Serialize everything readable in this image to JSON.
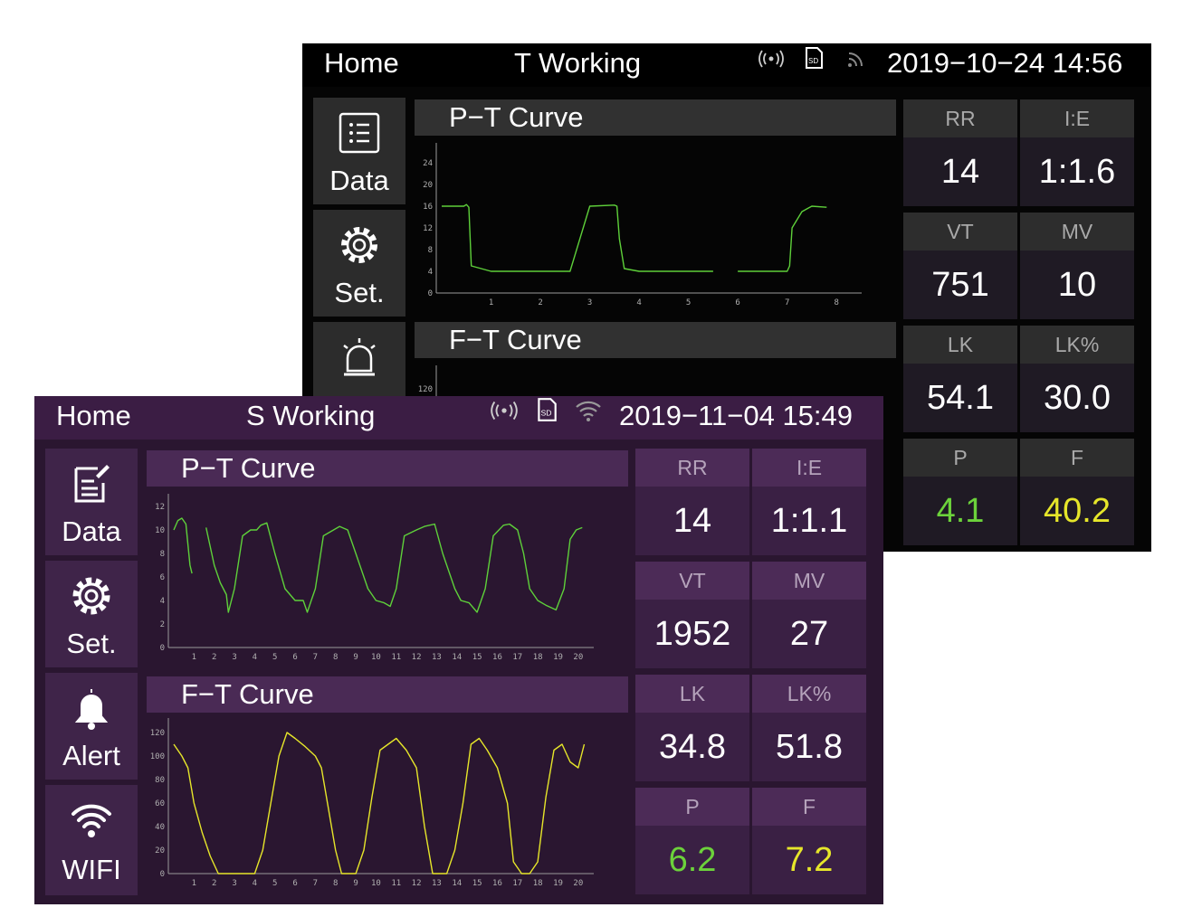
{
  "back_screen": {
    "header": {
      "home": "Home",
      "mode": "T Working",
      "sd_label": "SD",
      "datetime": "2019−10−24  14:56"
    },
    "nav": [
      {
        "label": "Data"
      },
      {
        "label": "Set."
      }
    ],
    "pt_curve": {
      "title": "P−T Curve",
      "y_ticks": [
        "24",
        "20",
        "16",
        "12",
        "8",
        "4",
        "0"
      ],
      "x_ticks": [
        "1",
        "2",
        "3",
        "4",
        "5",
        "6",
        "7",
        "8"
      ],
      "color": "#5ed03a"
    },
    "ft_curve": {
      "title": "F−T Curve",
      "y_ticks": [
        "120"
      ]
    },
    "params": [
      {
        "label": "RR",
        "value": "14"
      },
      {
        "label": "I:E",
        "value": "1:1.6"
      },
      {
        "label": "VT",
        "value": "751"
      },
      {
        "label": "MV",
        "value": "10"
      },
      {
        "label": "LK",
        "value": "54.1"
      },
      {
        "label": "LK%",
        "value": "30.0"
      },
      {
        "label": "P",
        "value": "4.1"
      },
      {
        "label": "F",
        "value": "40.2"
      }
    ],
    "p_color": "#6cd23b",
    "f_color": "#e6e62a"
  },
  "front_screen": {
    "header": {
      "home": "Home",
      "mode": "S Working",
      "sd_label": "SD",
      "datetime": "2019−11−04  15:49"
    },
    "nav": [
      {
        "label": "Data"
      },
      {
        "label": "Set."
      },
      {
        "label": "Alert"
      },
      {
        "label": "WIFI"
      }
    ],
    "pt_curve": {
      "title": "P−T Curve",
      "y_ticks": [
        "12",
        "10",
        "8",
        "6",
        "4",
        "2",
        "0"
      ],
      "x_ticks": [
        "1",
        "2",
        "3",
        "4",
        "5",
        "6",
        "7",
        "8",
        "9",
        "10",
        "11",
        "12",
        "13",
        "14",
        "15",
        "16",
        "17",
        "18",
        "19",
        "20"
      ],
      "color": "#5ed03a"
    },
    "ft_curve": {
      "title": "F−T Curve",
      "y_ticks": [
        "120",
        "100",
        "80",
        "60",
        "40",
        "20",
        "0"
      ],
      "x_ticks": [
        "1",
        "2",
        "3",
        "4",
        "5",
        "6",
        "7",
        "8",
        "9",
        "10",
        "11",
        "12",
        "13",
        "14",
        "15",
        "16",
        "17",
        "18",
        "19",
        "20"
      ],
      "color": "#e6e62a"
    },
    "params": [
      {
        "label": "RR",
        "value": "14"
      },
      {
        "label": "I:E",
        "value": "1:1.1"
      },
      {
        "label": "VT",
        "value": "1952"
      },
      {
        "label": "MV",
        "value": "27"
      },
      {
        "label": "LK",
        "value": "34.8"
      },
      {
        "label": "LK%",
        "value": "51.8"
      },
      {
        "label": "P",
        "value": "6.2"
      },
      {
        "label": "F",
        "value": "7.2"
      }
    ],
    "p_color": "#6cd23b",
    "f_color": "#e6e62a"
  },
  "chart_data": [
    {
      "type": "line",
      "title": "P−T Curve",
      "ylim": [
        0,
        24
      ],
      "x": [
        0.0,
        0.45,
        0.5,
        0.55,
        0.6,
        1.0,
        2.0,
        2.3,
        2.5,
        2.6,
        3.0,
        3.5,
        3.55,
        3.6,
        3.7,
        4.0,
        5.0,
        5.5,
        5.6,
        6.0,
        7.0,
        7.05,
        7.1,
        7.3,
        7.5,
        7.8
      ],
      "series": [
        {
          "values": [
            16,
            16,
            16.3,
            15.8,
            5,
            4,
            4,
            4,
            4,
            4,
            16,
            16.2,
            16,
            10,
            4.5,
            4,
            4,
            4,
            null,
            4,
            4,
            5,
            12,
            15,
            16,
            15.8
          ]
        }
      ]
    },
    {
      "type": "line",
      "title": "P−T Curve",
      "ylim": [
        0,
        12
      ],
      "x": [
        0.0,
        0.2,
        0.4,
        0.6,
        0.8,
        0.9,
        1.2,
        1.6,
        2.0,
        2.3,
        2.6,
        2.7,
        3.0,
        3.4,
        3.8,
        4.1,
        4.3,
        4.6,
        5.0,
        5.5,
        6.0,
        6.4,
        6.6,
        6.8,
        7.0,
        7.4,
        7.9,
        8.2,
        8.6,
        9.0,
        9.6,
        10.0,
        10.4,
        10.7,
        11.0,
        11.4,
        12.0,
        12.4,
        12.9,
        13.3,
        13.9,
        14.2,
        14.6,
        15.0,
        15.4,
        15.8,
        16.3,
        16.6,
        17.0,
        17.3,
        17.6,
        18.0,
        18.4,
        18.9,
        19.3,
        19.6,
        19.9,
        20.2
      ],
      "series": [
        {
          "values": [
            10,
            10.8,
            11,
            10.5,
            7,
            6.3,
            null,
            10.2,
            7,
            5.5,
            4.5,
            3,
            5,
            9.5,
            10,
            10,
            10.4,
            10.6,
            8,
            5,
            4,
            4,
            3,
            4,
            5,
            9.5,
            10,
            10.3,
            10,
            8,
            5,
            4,
            3.8,
            3.5,
            5,
            9.5,
            10,
            10.3,
            10.5,
            8,
            5,
            4,
            3.8,
            3,
            5,
            9.5,
            10.4,
            10.5,
            10,
            8,
            5,
            4,
            3.6,
            3.2,
            5,
            9.2,
            10,
            10.2
          ]
        }
      ]
    },
    {
      "type": "line",
      "title": "F−T Curve",
      "ylim": [
        0,
        120
      ],
      "x": [
        0.0,
        0.4,
        0.7,
        1.0,
        1.4,
        1.8,
        2.2,
        2.6,
        3.0,
        3.3,
        3.6,
        4.0,
        4.4,
        4.8,
        5.2,
        5.6,
        6.0,
        6.5,
        7.0,
        7.3,
        7.6,
        8.0,
        8.3,
        8.6,
        9.0,
        9.4,
        9.8,
        10.2,
        10.6,
        11.0,
        11.5,
        12.0,
        12.4,
        12.8,
        13.1,
        13.5,
        13.9,
        14.3,
        14.7,
        15.1,
        15.5,
        16.0,
        16.5,
        16.8,
        17.2,
        17.6,
        18.0,
        18.4,
        18.8,
        19.2,
        19.6,
        20.0,
        20.3
      ],
      "series": [
        {
          "values": [
            110,
            100,
            90,
            60,
            35,
            15,
            0,
            0,
            0,
            0,
            0,
            0,
            20,
            60,
            100,
            120,
            115,
            108,
            100,
            90,
            60,
            20,
            0,
            0,
            0,
            20,
            65,
            105,
            110,
            115,
            105,
            90,
            40,
            0,
            0,
            0,
            20,
            60,
            110,
            115,
            105,
            90,
            60,
            10,
            0,
            0,
            10,
            65,
            105,
            110,
            95,
            90,
            110
          ]
        }
      ]
    }
  ]
}
